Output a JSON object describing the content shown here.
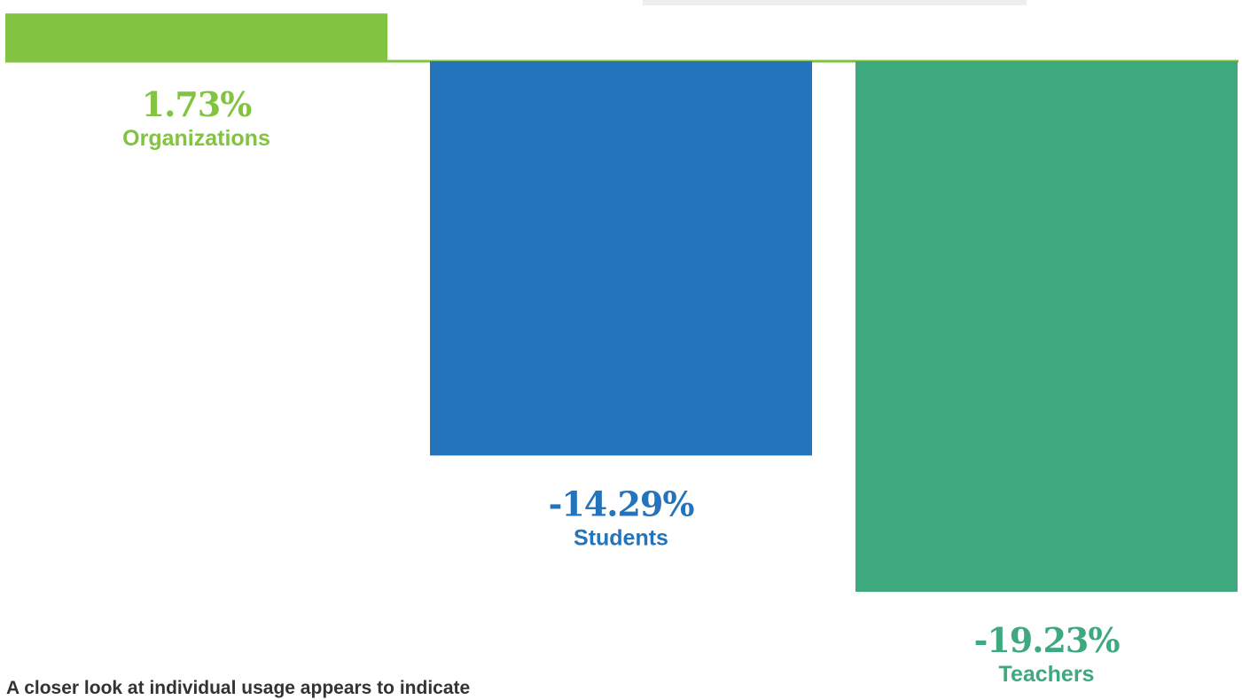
{
  "chart_data": {
    "type": "bar",
    "categories": [
      "Organizations",
      "Students",
      "Teachers"
    ],
    "values": [
      1.73,
      -14.29,
      -19.23
    ],
    "value_labels": [
      "1.73%",
      "-14.29%",
      "-19.23%"
    ],
    "colors": [
      "#82c341",
      "#2474bb",
      "#3ea87e"
    ],
    "baseline_color": "#82c341",
    "ylim": [
      -19.23,
      1.73
    ],
    "grid": false,
    "legend": "none"
  },
  "caption": "A closer look at individual usage appears to indicate"
}
